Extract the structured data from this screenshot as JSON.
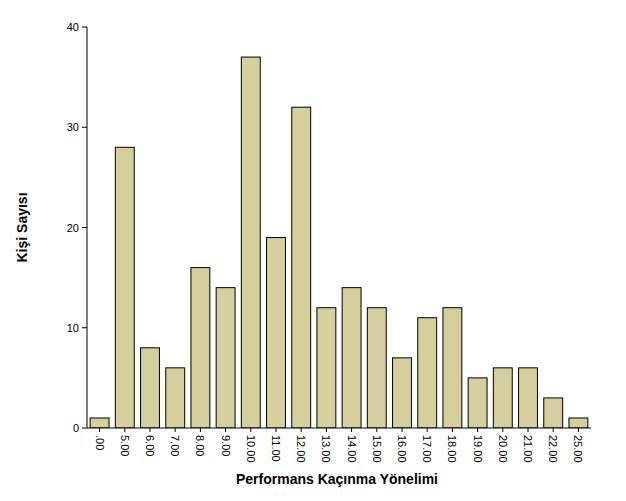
{
  "chart_data": {
    "type": "bar",
    "x_label": "Performans Kaçınma Yönelimi",
    "y_label": "Kişi Sayısı",
    "categories": [
      ".00",
      "5.00",
      "6.00",
      "7.00",
      "8.00",
      "9.00",
      "10.00",
      "11.00",
      "12.00",
      "13.00",
      "14.00",
      "15.00",
      "16.00",
      "17.00",
      "18.00",
      "19.00",
      "20.00",
      "21.00",
      "22.00",
      "25.00"
    ],
    "values": [
      1,
      28,
      8,
      6,
      16,
      14,
      37,
      19,
      32,
      12,
      14,
      12,
      7,
      11,
      12,
      5,
      6,
      6,
      3,
      1
    ],
    "color": "#d4cf9c",
    "ylim": [
      0,
      40
    ],
    "yticks": [
      0,
      10,
      20,
      30,
      40
    ],
    "grid": false
  }
}
